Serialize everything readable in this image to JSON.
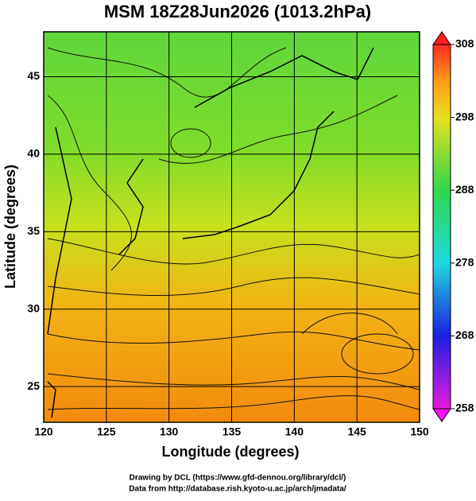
{
  "chart_data": {
    "type": "contourf",
    "title": "MSM 18Z28Jun2026 (1013.2hPa)",
    "x_label": "Longitude (degrees)",
    "y_label": "Latitude  (degrees)",
    "xlim": [
      120,
      150
    ],
    "xticks": [
      120,
      125,
      130,
      135,
      140,
      145,
      150
    ],
    "ylim": [
      22.7,
      47.9
    ],
    "yticks": [
      25,
      30,
      35,
      40,
      45
    ],
    "colorbar": {
      "lim": [
        258,
        308
      ],
      "ticks": [
        258,
        268,
        278,
        288,
        298,
        308
      ]
    },
    "credits": [
      "Drawing by DCL (https://www.gfd-dennou.org/library/dcl/)",
      "Data from http://database.rish.kyoto-u.ac.jp/arch/jmadata/"
    ]
  }
}
